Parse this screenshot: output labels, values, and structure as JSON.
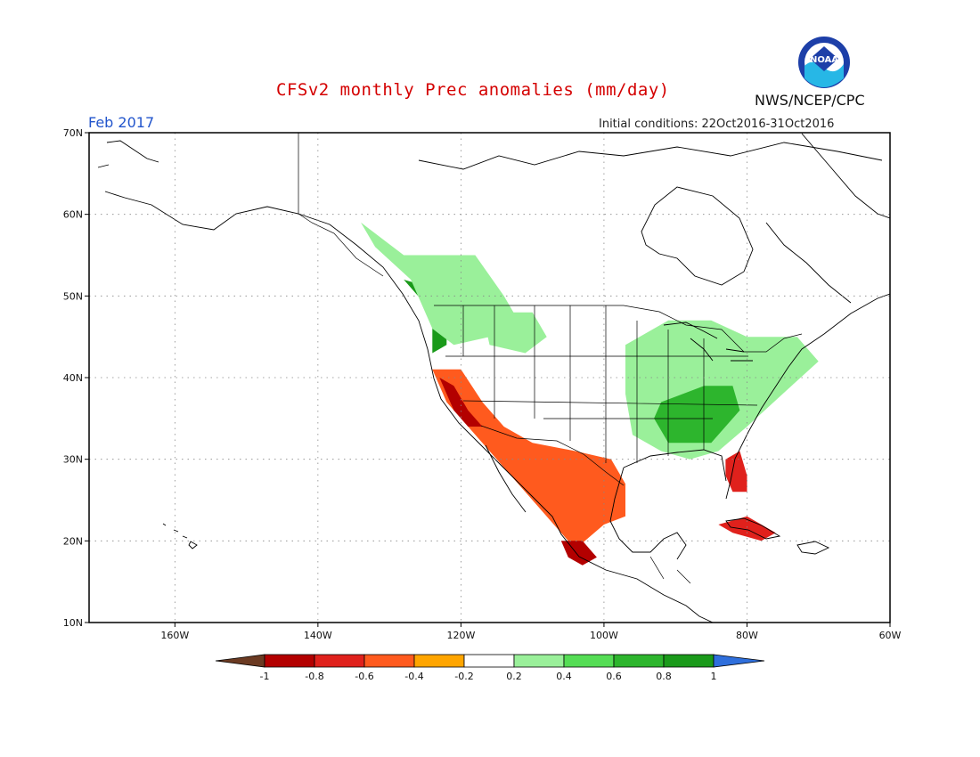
{
  "header": {
    "title": "CFSv2 monthly Prec anomalies (mm/day)",
    "forecast_month": "Feb 2017",
    "initial_conditions": "Initial conditions: 22Oct2016-31Oct2016",
    "agency": "NWS/NCEP/CPC",
    "logo_text": "NOAA"
  },
  "map": {
    "lon_range": [
      -172,
      -60
    ],
    "lat_range": [
      10,
      70
    ],
    "lat_labels": [
      "70N",
      "60N",
      "50N",
      "40N",
      "30N",
      "20N",
      "10N"
    ],
    "lon_labels": [
      "160W",
      "140W",
      "120W",
      "100W",
      "80W",
      "60W"
    ],
    "grid": true,
    "regions": [
      {
        "name": "pacific-northwest-wet",
        "level": 0.9,
        "points": [
          [
            -128,
            52
          ],
          [
            -126,
            50
          ],
          [
            -124,
            48
          ],
          [
            -124,
            43
          ],
          [
            -122,
            44
          ],
          [
            -122,
            48
          ],
          [
            -124,
            51
          ]
        ]
      },
      {
        "name": "bc-alaska-wet",
        "level": 0.3,
        "points": [
          [
            -134,
            59
          ],
          [
            -128,
            55
          ],
          [
            -118,
            55
          ],
          [
            -114,
            50
          ],
          [
            -112,
            47
          ],
          [
            -116,
            45
          ],
          [
            -121,
            44
          ],
          [
            -124,
            46
          ],
          [
            -127,
            52
          ],
          [
            -132,
            56
          ]
        ]
      },
      {
        "name": "northern-rockies-wet",
        "level": 0.3,
        "points": [
          [
            -117,
            48
          ],
          [
            -110,
            48
          ],
          [
            -108,
            45
          ],
          [
            -111,
            43
          ],
          [
            -116,
            44
          ]
        ]
      },
      {
        "name": "eastern-us-wet",
        "level": 0.3,
        "points": [
          [
            -97,
            44
          ],
          [
            -91,
            47
          ],
          [
            -85,
            47
          ],
          [
            -80,
            45
          ],
          [
            -73,
            45
          ],
          [
            -70,
            42
          ],
          [
            -75,
            38
          ],
          [
            -80,
            34
          ],
          [
            -84,
            31
          ],
          [
            -88,
            30
          ],
          [
            -92,
            31
          ],
          [
            -96,
            33
          ],
          [
            -97,
            38
          ]
        ]
      },
      {
        "name": "ohio-tennessee-wet",
        "level": 0.7,
        "points": [
          [
            -92,
            37
          ],
          [
            -86,
            39
          ],
          [
            -82,
            39
          ],
          [
            -81,
            36
          ],
          [
            -85,
            32
          ],
          [
            -91,
            32
          ],
          [
            -93,
            35
          ]
        ]
      },
      {
        "name": "california-dry",
        "level": -0.5,
        "points": [
          [
            -124,
            41
          ],
          [
            -120,
            41
          ],
          [
            -117,
            37
          ],
          [
            -114,
            34
          ],
          [
            -110,
            32
          ],
          [
            -104,
            31
          ],
          [
            -99,
            30
          ],
          [
            -97,
            27
          ],
          [
            -97,
            23
          ],
          [
            -100,
            22
          ],
          [
            -104,
            19
          ],
          [
            -106,
            21
          ],
          [
            -109,
            24
          ],
          [
            -112,
            27
          ],
          [
            -116,
            31
          ],
          [
            -119,
            34
          ],
          [
            -122,
            37
          ]
        ]
      },
      {
        "name": "california-coast-very-dry",
        "level": -0.95,
        "points": [
          [
            -123,
            40
          ],
          [
            -121,
            39
          ],
          [
            -119,
            36
          ],
          [
            -117,
            34
          ],
          [
            -119,
            34
          ],
          [
            -121,
            36
          ]
        ]
      },
      {
        "name": "sw-mexico-very-dry",
        "level": -0.85,
        "points": [
          [
            -106,
            20
          ],
          [
            -103,
            20
          ],
          [
            -101,
            18
          ],
          [
            -103,
            17
          ],
          [
            -105,
            18
          ]
        ]
      },
      {
        "name": "florida-dry",
        "level": -0.7,
        "points": [
          [
            -83,
            30
          ],
          [
            -81,
            31
          ],
          [
            -80,
            28
          ],
          [
            -80,
            26
          ],
          [
            -82,
            26
          ],
          [
            -83,
            28
          ]
        ]
      },
      {
        "name": "cuba-dry",
        "level": -0.6,
        "points": [
          [
            -84,
            22
          ],
          [
            -80,
            23
          ],
          [
            -76,
            21
          ],
          [
            -78,
            20
          ],
          [
            -82,
            21
          ]
        ]
      }
    ]
  },
  "colorbar": {
    "labels": [
      "-1",
      "-0.8",
      "-0.6",
      "-0.4",
      "-0.2",
      "0.2",
      "0.4",
      "0.6",
      "0.8",
      "1"
    ],
    "colors": [
      "#6b3a22",
      "#b30000",
      "#e0211c",
      "#ff5a1e",
      "#ffa500",
      "#ffffff",
      "#9af09a",
      "#55dd55",
      "#2db52d",
      "#1a9a1a",
      "#2f6fdc"
    ]
  }
}
